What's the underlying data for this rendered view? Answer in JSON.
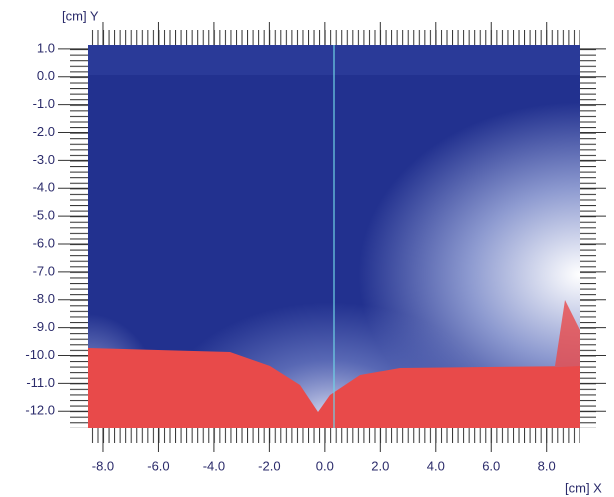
{
  "chart_data": {
    "type": "image",
    "x_label": "[cm] X",
    "y_label": "[cm] Y",
    "xlim": [
      -8.54,
      9.2
    ],
    "ylim": [
      -12.6,
      1.14
    ],
    "xticks": [
      {
        "value": -8,
        "label": "-8.0"
      },
      {
        "value": -6,
        "label": "-6.0"
      },
      {
        "value": -4,
        "label": "-4.0"
      },
      {
        "value": -2,
        "label": "-2.0"
      },
      {
        "value": 0,
        "label": "0.0"
      },
      {
        "value": 2,
        "label": "2.0"
      },
      {
        "value": 4,
        "label": "4.0"
      },
      {
        "value": 6,
        "label": "6.0"
      },
      {
        "value": 8,
        "label": "8.0"
      }
    ],
    "yticks": [
      {
        "value": 1,
        "label": "1.0"
      },
      {
        "value": 0,
        "label": "0.0"
      },
      {
        "value": -1,
        "label": "-1.0"
      },
      {
        "value": -2,
        "label": "-2.0"
      },
      {
        "value": -3,
        "label": "-3.0"
      },
      {
        "value": -4,
        "label": "-4.0"
      },
      {
        "value": -5,
        "label": "-5.0"
      },
      {
        "value": -6,
        "label": "-6.0"
      },
      {
        "value": -7,
        "label": "-7.0"
      },
      {
        "value": -8,
        "label": "-8.0"
      },
      {
        "value": -9,
        "label": "-9.0"
      },
      {
        "value": -10,
        "label": "-10.0"
      },
      {
        "value": -11,
        "label": "-11.0"
      },
      {
        "value": -12,
        "label": "-12.0"
      }
    ]
  }
}
